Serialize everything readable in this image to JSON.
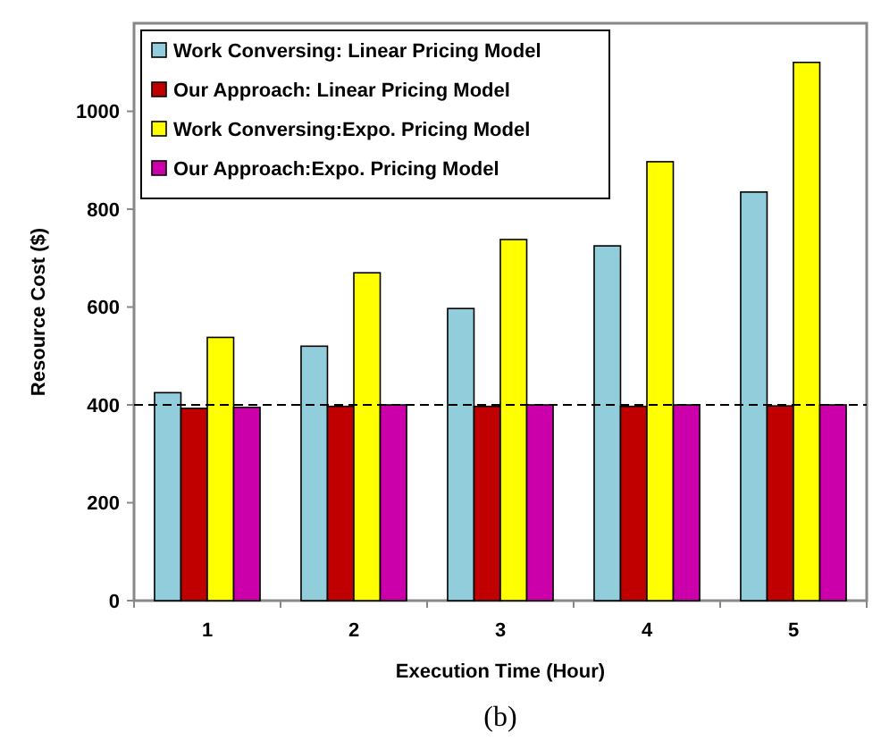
{
  "chart_data": {
    "type": "bar",
    "xlabel": "Execution Time (Hour)",
    "ylabel": "Resource Cost ($)",
    "categories": [
      "1",
      "2",
      "3",
      "4",
      "5"
    ],
    "series": [
      {
        "name": "Work Conversing: Linear Pricing Model",
        "color": "#92cddc",
        "values": [
          425,
          520,
          597,
          725,
          835
        ]
      },
      {
        "name": "Our Approach: Linear Pricing Model",
        "color": "#c00000",
        "values": [
          393,
          397,
          397,
          397,
          398
        ]
      },
      {
        "name": "Work Conversing:Expo. Pricing Model",
        "color": "#ffff00",
        "values": [
          538,
          670,
          738,
          897,
          1100
        ]
      },
      {
        "name": "Our Approach:Expo. Pricing Model",
        "color": "#cc00aa",
        "values": [
          395,
          400,
          400,
          400,
          400
        ]
      }
    ],
    "ylim": [
      0,
      1180
    ],
    "yticks": [
      0,
      200,
      400,
      600,
      800,
      1000
    ],
    "grid": false,
    "legend": "top left",
    "ref_lines": [
      {
        "axis": "y",
        "value": 400,
        "color": "#000000",
        "line_style": "dashed"
      }
    ],
    "annotations": [
      "(b)"
    ]
  }
}
